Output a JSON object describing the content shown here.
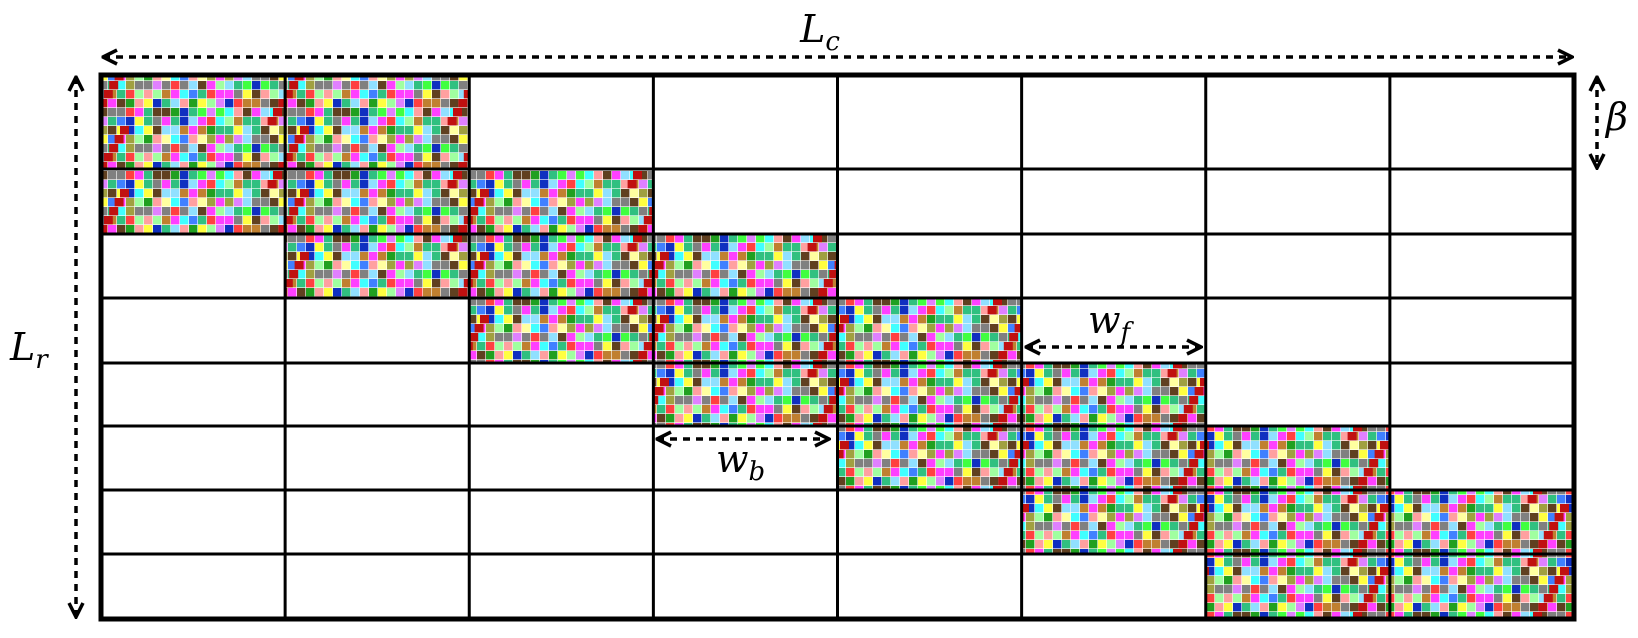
{
  "labels": {
    "total_columns": {
      "symbol": "L",
      "subscript": "c"
    },
    "total_rows": {
      "symbol": "L",
      "subscript": "r"
    },
    "row_height": {
      "symbol": "β"
    },
    "forward_width": {
      "symbol": "w",
      "subscript": "f"
    },
    "backward_width": {
      "symbol": "w",
      "subscript": "b"
    }
  }
}
